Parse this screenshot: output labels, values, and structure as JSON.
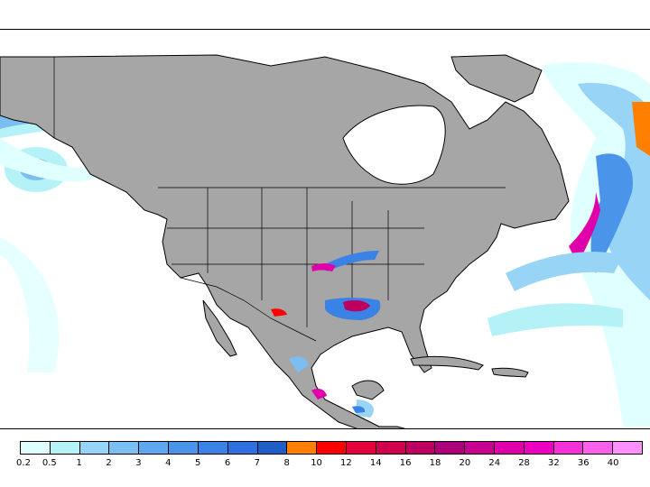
{
  "map": {
    "region": "North America",
    "land_color": "#a6a6a6",
    "water_color": "#ffffff",
    "border_color": "#000000"
  },
  "legend": {
    "labels": [
      "0.2",
      "0.5",
      "1",
      "2",
      "3",
      "4",
      "5",
      "6",
      "7",
      "8",
      "10",
      "12",
      "14",
      "16",
      "18",
      "20",
      "24",
      "28",
      "32",
      "36",
      "40"
    ],
    "colors": [
      "#e0ffff",
      "#b5f2f7",
      "#97d4f5",
      "#7bbff2",
      "#5ea8ef",
      "#4a94ea",
      "#3b82e6",
      "#2d70de",
      "#1f5ec8",
      "#ff7f00",
      "#ff0000",
      "#e6003c",
      "#d0004f",
      "#bd005f",
      "#ab007a",
      "#c8008f",
      "#e000aa",
      "#ee00c0",
      "#f530d8",
      "#fb60ea",
      "#ff90ff"
    ]
  }
}
